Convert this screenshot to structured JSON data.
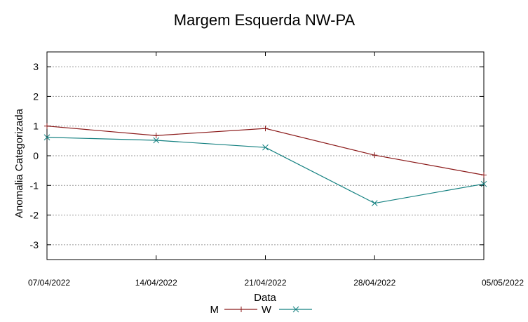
{
  "chart_data": {
    "type": "line",
    "title": "Margem Esquerda NW-PA",
    "xlabel": "Data",
    "ylabel": "Anomalia Categorizada",
    "categories": [
      "07/04/2022",
      "14/04/2022",
      "21/04/2022",
      "28/04/2022",
      "05/05/2022"
    ],
    "ylim": [
      -3.5,
      3.5
    ],
    "yticks": [
      3,
      2,
      1,
      0,
      -1,
      -2,
      -3
    ],
    "ytick_labels": [
      "3",
      "2",
      "1",
      "0",
      "-1",
      "-2",
      "-3"
    ],
    "grid": true,
    "legend_position": "bottom-center",
    "series": [
      {
        "name": "M",
        "color": "#8b1a1a",
        "marker": "plus",
        "values": [
          1.0,
          0.68,
          0.92,
          0.02,
          -0.65
        ]
      },
      {
        "name": "W",
        "color": "#138080",
        "marker": "cross",
        "values": [
          0.62,
          0.52,
          0.28,
          -1.6,
          -0.95
        ]
      }
    ]
  }
}
